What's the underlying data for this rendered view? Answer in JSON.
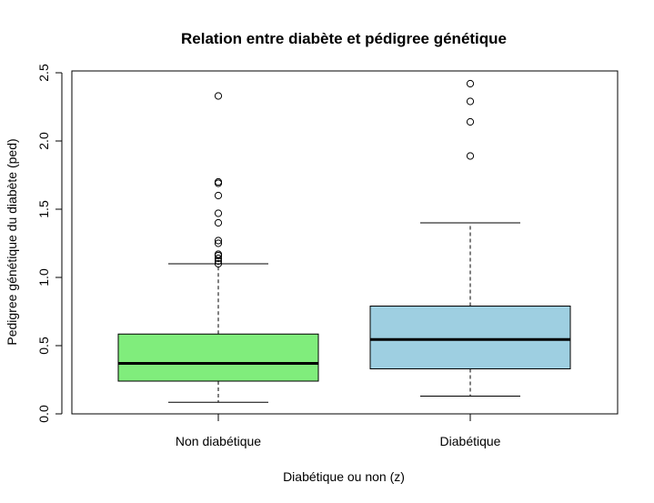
{
  "chart_data": {
    "type": "boxplot",
    "title": "Relation entre diabète et pédigree génétique",
    "xlabel": "Diabétique ou non (z)",
    "ylabel": "Pedigree génétique du diabète (ped)",
    "ylim": [
      0,
      2.5
    ],
    "yticks": [
      "0.0",
      "0.5",
      "1.0",
      "1.5",
      "2.0",
      "2.5"
    ],
    "grid": false,
    "legend": "none",
    "categories": [
      "Non diabétique",
      "Diabétique"
    ],
    "series": [
      {
        "category": "Non diabétique",
        "color": "#80ed7c",
        "whisker_low": 0.085,
        "q1": 0.24,
        "median": 0.37,
        "q3": 0.585,
        "whisker_high": 1.1,
        "outliers": [
          1.1,
          1.12,
          1.14,
          1.16,
          1.17,
          1.25,
          1.27,
          1.4,
          1.47,
          1.6,
          1.69,
          1.7,
          2.33
        ]
      },
      {
        "category": "Diabétique",
        "color": "#9ecfe1",
        "whisker_low": 0.13,
        "q1": 0.33,
        "median": 0.545,
        "q3": 0.79,
        "whisker_high": 1.4,
        "outliers": [
          1.89,
          2.14,
          2.29,
          2.42
        ]
      }
    ]
  }
}
